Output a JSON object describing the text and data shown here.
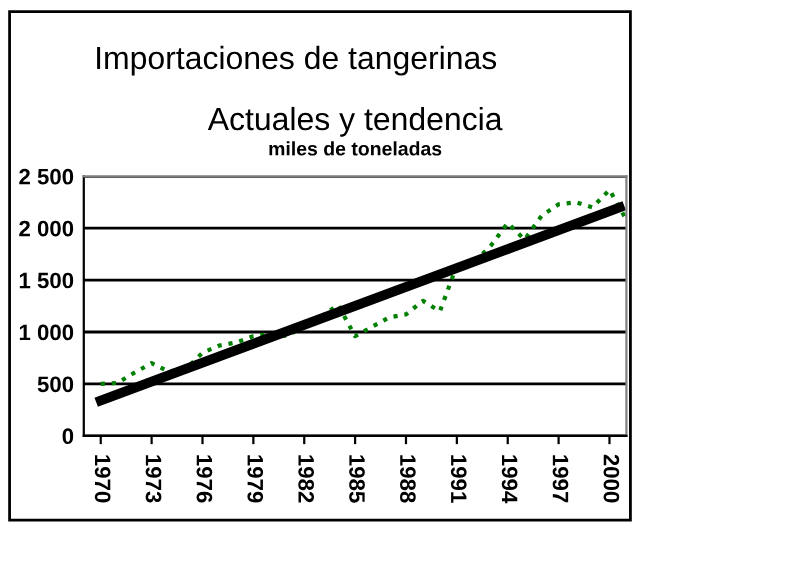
{
  "chart_data": {
    "type": "line",
    "title": "Importaciones de tangerinas",
    "subtitle": "Actuales y tendencia",
    "ylabel": "miles de toneladas",
    "series": [
      {
        "color": "#008000",
        "x": [
          1970,
          1971,
          1972,
          1973,
          1974,
          1975,
          1976,
          1977,
          1978,
          1979,
          1980,
          1981,
          1982,
          1983,
          1984,
          1985,
          1986,
          1987,
          1988,
          1989,
          1990,
          1991,
          1992,
          1993,
          1994,
          1995,
          1996,
          1997,
          1998,
          1999,
          2000,
          2001
        ],
        "values": [
          500,
          510,
          610,
          700,
          620,
          640,
          800,
          870,
          900,
          960,
          980,
          960,
          1060,
          1150,
          1260,
          960,
          1050,
          1140,
          1170,
          1300,
          1200,
          1640,
          1670,
          1830,
          2050,
          1890,
          2120,
          2230,
          2250,
          2200,
          2370,
          2080
        ],
        "line_style": "dotted"
      },
      {
        "color": "#000000",
        "x": [
          1970,
          2000.6
        ],
        "values": [
          340,
          2200
        ],
        "line_style": "solid"
      }
    ],
    "xlim": [
      1969,
      2001
    ],
    "xticks": [
      {
        "value": 1970,
        "label": "1970"
      },
      {
        "value": 1973,
        "label": "1973"
      },
      {
        "value": 1976,
        "label": "1976"
      },
      {
        "value": 1979,
        "label": "1979"
      },
      {
        "value": 1982,
        "label": "1982"
      },
      {
        "value": 1985,
        "label": "1985"
      },
      {
        "value": 1988,
        "label": "1988"
      },
      {
        "value": 1991,
        "label": "1991"
      },
      {
        "value": 1994,
        "label": "1994"
      },
      {
        "value": 1997,
        "label": "1997"
      },
      {
        "value": 2000,
        "label": "2000"
      }
    ],
    "ylim": [
      0,
      2500
    ],
    "yticks": [
      {
        "value": 0,
        "label": "0"
      },
      {
        "value": 500,
        "label": "500"
      },
      {
        "value": 1000,
        "label": "1 000"
      },
      {
        "value": 1500,
        "label": "1 500"
      },
      {
        "value": 2000,
        "label": "2 000"
      },
      {
        "value": 2500,
        "label": "2 500"
      }
    ],
    "grid": "y",
    "legend": false,
    "marker": "none"
  }
}
